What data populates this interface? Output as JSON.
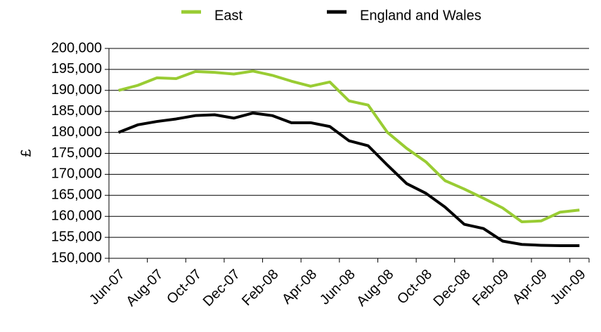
{
  "chart_data": {
    "type": "line",
    "ylabel": "£",
    "categories": [
      "Jun-07",
      null,
      "Aug-07",
      null,
      "Oct-07",
      null,
      "Dec-07",
      null,
      "Feb-08",
      null,
      "Apr-08",
      null,
      "Jun-08",
      null,
      "Aug-08",
      null,
      "Oct-08",
      null,
      "Dec-08",
      null,
      "Feb-09",
      null,
      "Apr-09",
      null,
      "Jun-09"
    ],
    "series": [
      {
        "name": "East",
        "color": "#99cc33",
        "values": [
          190000,
          191200,
          193000,
          192800,
          194500,
          194300,
          193900,
          194600,
          193600,
          192200,
          191000,
          192000,
          187500,
          186500,
          180000,
          176200,
          173000,
          168500,
          166500,
          164300,
          162000,
          158700,
          158900,
          161000,
          161500
        ]
      },
      {
        "name": "England and Wales",
        "color": "#000000",
        "values": [
          180000,
          181800,
          182600,
          183200,
          184000,
          184200,
          183400,
          184600,
          184000,
          182300,
          182300,
          181400,
          178000,
          176800,
          172200,
          167800,
          165500,
          162200,
          158100,
          157100,
          154100,
          153300,
          153100,
          153000,
          153000
        ]
      }
    ],
    "ylim": [
      150000,
      200000
    ],
    "yticks": [
      {
        "value": 150000,
        "label": "150,000"
      },
      {
        "value": 155000,
        "label": "155,000"
      },
      {
        "value": 160000,
        "label": "160,000"
      },
      {
        "value": 165000,
        "label": "165,000"
      },
      {
        "value": 170000,
        "label": "170,000"
      },
      {
        "value": 175000,
        "label": "175,000"
      },
      {
        "value": 180000,
        "label": "180,000"
      },
      {
        "value": 185000,
        "label": "185,000"
      },
      {
        "value": 190000,
        "label": "190,000"
      },
      {
        "value": 195000,
        "label": "195,000"
      },
      {
        "value": 200000,
        "label": "200,000"
      }
    ],
    "grid": true,
    "legend": "top"
  }
}
